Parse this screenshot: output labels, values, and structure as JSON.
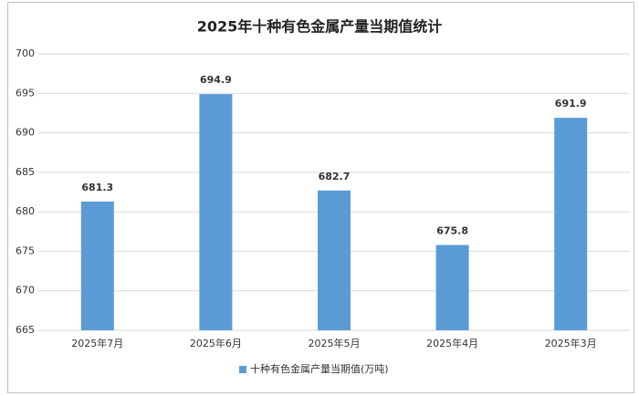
{
  "chart_data": {
    "type": "bar",
    "title": "2025年十种有色金属产量当期值统计",
    "categories": [
      "2025年7月",
      "2025年6月",
      "2025年5月",
      "2025年4月",
      "2025年3月"
    ],
    "series": [
      {
        "name": "十种有色金属产量当期值(万吨)",
        "color": "#5b9bd5",
        "values": [
          681.3,
          694.9,
          682.7,
          675.8,
          691.9
        ]
      }
    ],
    "ylim": [
      665,
      700
    ],
    "yticks": [
      665,
      670,
      675,
      680,
      685,
      690,
      695,
      700
    ],
    "grid": true,
    "legend": "bottom"
  }
}
